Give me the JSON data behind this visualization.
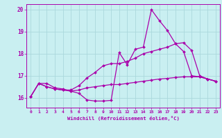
{
  "xlabel": "Windchill (Refroidissement éolien,°C)",
  "xlim": [
    -0.5,
    23.5
  ],
  "ylim": [
    15.55,
    20.25
  ],
  "yticks": [
    16,
    17,
    18,
    19,
    20
  ],
  "xticks": [
    0,
    1,
    2,
    3,
    4,
    5,
    6,
    7,
    8,
    9,
    10,
    11,
    12,
    13,
    14,
    15,
    16,
    17,
    18,
    19,
    20,
    21,
    22,
    23
  ],
  "bg_color": "#c9eff1",
  "grid_color": "#aad8dc",
  "line_color": "#aa00aa",
  "line1_x": [
    0,
    1,
    2,
    3,
    4,
    5,
    6,
    7,
    8,
    9,
    10,
    11,
    12,
    13,
    14,
    15,
    16,
    17,
    18,
    19,
    20,
    21,
    22,
    23
  ],
  "line1_y": [
    16.05,
    16.65,
    16.65,
    16.45,
    16.4,
    16.3,
    16.2,
    15.9,
    15.85,
    15.85,
    15.88,
    18.05,
    17.5,
    18.2,
    18.3,
    20.0,
    19.5,
    19.05,
    18.45,
    18.1,
    17.0,
    16.95,
    16.85,
    16.75
  ],
  "line2_x": [
    0,
    1,
    2,
    3,
    4,
    5,
    6,
    7,
    8,
    9,
    10,
    11,
    12,
    13,
    14,
    15,
    16,
    17,
    18,
    19,
    20,
    21,
    22,
    23
  ],
  "line2_y": [
    16.05,
    16.65,
    16.5,
    16.4,
    16.35,
    16.35,
    16.55,
    16.9,
    17.15,
    17.45,
    17.55,
    17.55,
    17.65,
    17.8,
    18.0,
    18.1,
    18.2,
    18.3,
    18.45,
    18.5,
    18.15,
    17.0,
    16.85,
    16.75
  ],
  "line3_x": [
    0,
    1,
    2,
    3,
    4,
    5,
    6,
    7,
    8,
    9,
    10,
    11,
    12,
    13,
    14,
    15,
    16,
    17,
    18,
    19,
    20,
    21,
    22,
    23
  ],
  "line3_y": [
    16.05,
    16.65,
    16.5,
    16.4,
    16.35,
    16.3,
    16.35,
    16.45,
    16.5,
    16.55,
    16.6,
    16.6,
    16.65,
    16.7,
    16.75,
    16.8,
    16.85,
    16.88,
    16.92,
    16.95,
    16.95,
    16.95,
    16.85,
    16.75
  ]
}
